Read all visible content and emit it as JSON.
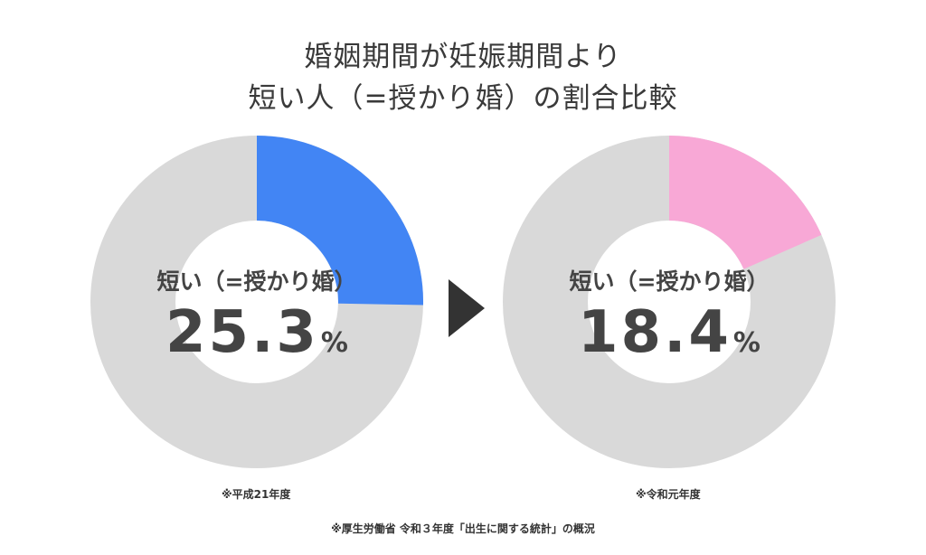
{
  "title_lines": [
    "婚姻期間が妊娠期間より",
    "短い人（=授かり婚）の割合比較"
  ],
  "chart_data": [
    {
      "type": "pie",
      "donut": true,
      "center_label": "短い（=授かり婚）",
      "value": 25.3,
      "value_text": "25.3",
      "unit": "%",
      "note": "※平成21年度",
      "color": "#4285f4",
      "track_color": "#d9d9d9"
    },
    {
      "type": "pie",
      "donut": true,
      "center_label": "短い（=授かり婚）",
      "value": 18.4,
      "value_text": "18.4",
      "unit": "%",
      "note": "※令和元年度",
      "color": "#f8a8d6",
      "track_color": "#d9d9d9"
    }
  ],
  "arrow_icon": "right-triangle-icon",
  "source": "※厚生労働省 令和３年度「出生に関する統計」の概況"
}
